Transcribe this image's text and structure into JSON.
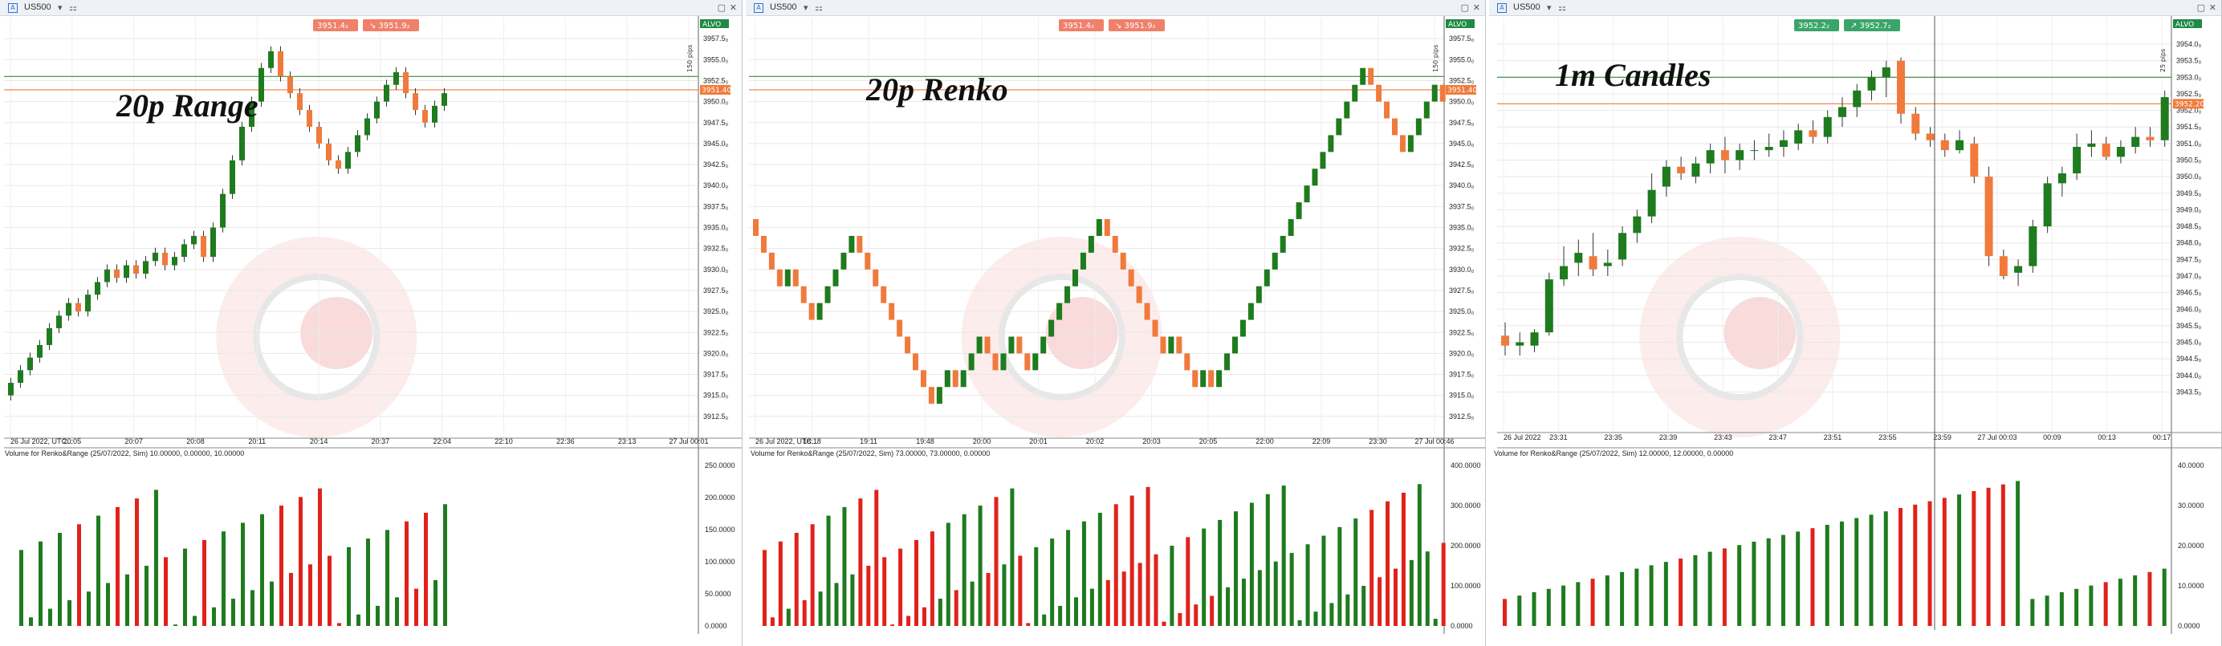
{
  "panels": [
    {
      "id": "range",
      "symbol": "US500",
      "watermark": "20p Range",
      "volume_title": "Volume for Renko&Range (25/07/2022, Sim) 10.00000, 0.00000, 10.00000",
      "bid_tag": "3951.4₂",
      "ask_tag": "3951.9₂",
      "alvo_label": "ALVO",
      "range_label": "150 pips",
      "price_tag": "3951.40",
      "target_tag": "3953.0",
      "chart_data": {
        "type": "candlestick",
        "ylim": [
          3910,
          3960
        ],
        "yticks": [
          3912.5,
          3915,
          3917.5,
          3920,
          3922.5,
          3925,
          3927.5,
          3930,
          3932.5,
          3935,
          3937.5,
          3940,
          3942.5,
          3945,
          3947.5,
          3950,
          3952.5,
          3955,
          3957.5
        ],
        "ytick_labels": [
          "3912.5₀",
          "3915.0₀",
          "3917.5₀",
          "3920.0₀",
          "3922.5₀",
          "3925.0₀",
          "3927.5₀",
          "3930.0₀",
          "3932.5₀",
          "3935.0₀",
          "3937.5₀",
          "3940.0₀",
          "3942.5₀",
          "3945.0₀",
          "3947.5₀",
          "3950.0₀",
          "3952.5₀",
          "3955.0₀",
          "3957.5₀"
        ],
        "x_labels": [
          "26 Jul 2022, UTC...",
          "20:05",
          "20:07",
          "20:08",
          "20:11",
          "20:14",
          "20:37",
          "22:04",
          "22:10",
          "22:36",
          "23:13",
          "27 Jul 00:01"
        ],
        "closes": [
          3916.5,
          3918,
          3919.5,
          3921,
          3923,
          3924.5,
          3926,
          3925,
          3927,
          3928.5,
          3930,
          3929,
          3930.5,
          3929.5,
          3931,
          3932,
          3930.5,
          3931.5,
          3933,
          3934,
          3931.5,
          3935,
          3939,
          3943,
          3947,
          3950,
          3954,
          3956,
          3953,
          3951,
          3949,
          3947,
          3945,
          3943,
          3942,
          3944,
          3946,
          3948,
          3950,
          3952,
          3953.5,
          3951,
          3949,
          3947.5,
          3949.5,
          3951
        ],
        "line_green": 3953.0,
        "line_orange": 3951.4,
        "volume_ylim": [
          0,
          260000
        ],
        "volume_ticks": [
          "250.0000",
          "200.0000",
          "150.0000",
          "100.0000",
          "50.0000",
          "0.0000"
        ]
      }
    },
    {
      "id": "renko",
      "symbol": "US500",
      "watermark": "20p Renko",
      "volume_title": "Volume for Renko&Range (25/07/2022, Sim) 73.00000, 73.00000, 0.00000",
      "bid_tag": "3951.4₂",
      "ask_tag": "3951.9₂",
      "alvo_label": "ALVO",
      "range_label": "150 pips",
      "price_tag": "3951.40",
      "target_tag": "3953.0",
      "chart_data": {
        "type": "renko",
        "ylim": [
          3910,
          3960
        ],
        "yticks": [
          3912.5,
          3915,
          3917.5,
          3920,
          3922.5,
          3925,
          3927.5,
          3930,
          3932.5,
          3935,
          3937.5,
          3940,
          3942.5,
          3945,
          3947.5,
          3950,
          3952.5,
          3955,
          3957.5
        ],
        "ytick_labels": [
          "3912.5₀",
          "3915.0₀",
          "3917.5₀",
          "3920.0₀",
          "3922.5₀",
          "3925.0₀",
          "3927.5₀",
          "3930.0₀",
          "3932.5₀",
          "3935.0₀",
          "3937.5₀",
          "3940.0₀",
          "3942.5₀",
          "3945.0₀",
          "3947.5₀",
          "3950.0₀",
          "3952.5₀",
          "3955.0₀",
          "3957.5₀"
        ],
        "x_labels": [
          "26 Jul 2022, UTC...",
          "18:18",
          "19:11",
          "19:48",
          "20:00",
          "20:01",
          "20:02",
          "20:03",
          "20:05",
          "22:00",
          "22:09",
          "23:30",
          "27 Jul 00:46"
        ],
        "closes": [
          3934,
          3932,
          3930,
          3928,
          3930,
          3928,
          3926,
          3924,
          3926,
          3928,
          3930,
          3932,
          3934,
          3932,
          3930,
          3928,
          3926,
          3924,
          3922,
          3920,
          3918,
          3916,
          3914,
          3916,
          3918,
          3916,
          3918,
          3920,
          3922,
          3920,
          3918,
          3920,
          3922,
          3920,
          3918,
          3920,
          3922,
          3924,
          3926,
          3928,
          3930,
          3932,
          3934,
          3936,
          3934,
          3932,
          3930,
          3928,
          3926,
          3924,
          3922,
          3920,
          3922,
          3920,
          3918,
          3916,
          3918,
          3916,
          3918,
          3920,
          3922,
          3924,
          3926,
          3928,
          3930,
          3932,
          3934,
          3936,
          3938,
          3940,
          3942,
          3944,
          3946,
          3948,
          3950,
          3952,
          3954,
          3952,
          3950,
          3948,
          3946,
          3944,
          3946,
          3948,
          3950,
          3952,
          3950
        ],
        "line_green": 3953.0,
        "line_orange": 3951.4,
        "volume_ylim": [
          0,
          480000
        ],
        "volume_ticks": [
          "400.0000",
          "300.0000",
          "200.0000",
          "100.0000",
          "0.0000"
        ]
      }
    },
    {
      "id": "candles",
      "symbol": "US500",
      "watermark": "1m Candles",
      "volume_title": "Volume for Renko&Range (25/07/2022, Sim) 12.00000, 12.00000, 0.00000",
      "bid_tag": "3952.2₂",
      "ask_tag": "3952.7₂",
      "alvo_label": "ALVO",
      "range_label": "25 pips",
      "price_tag": "3952.20",
      "target_tag": "3953.0",
      "chart_data": {
        "type": "candlestick",
        "ylim": [
          3942.3,
          3954.8
        ],
        "yticks": [
          3943.5,
          3944,
          3944.5,
          3945,
          3945.5,
          3946,
          3946.5,
          3947,
          3947.5,
          3948,
          3948.5,
          3949,
          3949.5,
          3950,
          3950.5,
          3951,
          3951.5,
          3952,
          3952.5,
          3953,
          3953.5,
          3954
        ],
        "ytick_labels": [
          "3943.5₀",
          "3944.0₀",
          "3944.5₀",
          "3945.0₀",
          "3945.5₀",
          "3946.0₀",
          "3946.5₀",
          "3947.0₀",
          "3947.5₀",
          "3948.0₀",
          "3948.5₀",
          "3949.0₀",
          "3949.5₀",
          "3950.0₀",
          "3950.5₀",
          "3951.0₀",
          "3951.5₀",
          "3952.0₀",
          "3952.5₀",
          "3953.0₀",
          "3953.5₀",
          "3954.0₀"
        ],
        "x_labels": [
          "26 Jul 2022",
          "23:31",
          "23:35",
          "23:39",
          "23:43",
          "23:47",
          "23:51",
          "23:55",
          "23:59",
          "27 Jul 00:03",
          "00:09",
          "00:13",
          "00:17"
        ],
        "ohlc": [
          [
            3945.2,
            3945.6,
            3944.6,
            3944.9
          ],
          [
            3944.9,
            3945.3,
            3944.6,
            3945.0
          ],
          [
            3944.9,
            3945.4,
            3944.7,
            3945.3
          ],
          [
            3945.3,
            3947.1,
            3945.2,
            3946.9
          ],
          [
            3946.9,
            3947.9,
            3946.7,
            3947.3
          ],
          [
            3947.4,
            3948.1,
            3947.0,
            3947.7
          ],
          [
            3947.6,
            3948.3,
            3947.0,
            3947.2
          ],
          [
            3947.3,
            3947.8,
            3947.0,
            3947.4
          ],
          [
            3947.5,
            3948.5,
            3947.3,
            3948.3
          ],
          [
            3948.3,
            3949.0,
            3948.0,
            3948.8
          ],
          [
            3948.8,
            3950.1,
            3948.6,
            3949.6
          ],
          [
            3949.7,
            3950.5,
            3949.4,
            3950.3
          ],
          [
            3950.3,
            3950.6,
            3949.9,
            3950.1
          ],
          [
            3950.0,
            3950.6,
            3949.8,
            3950.4
          ],
          [
            3950.4,
            3951.0,
            3950.1,
            3950.8
          ],
          [
            3950.8,
            3951.2,
            3950.1,
            3950.5
          ],
          [
            3950.5,
            3951.0,
            3950.2,
            3950.8
          ],
          [
            3950.8,
            3951.1,
            3950.5,
            3950.8
          ],
          [
            3950.8,
            3951.3,
            3950.6,
            3950.9
          ],
          [
            3950.9,
            3951.4,
            3950.6,
            3951.1
          ],
          [
            3951.0,
            3951.6,
            3950.8,
            3951.4
          ],
          [
            3951.4,
            3951.7,
            3951.0,
            3951.2
          ],
          [
            3951.2,
            3952.0,
            3951.0,
            3951.8
          ],
          [
            3951.8,
            3952.4,
            3951.5,
            3952.1
          ],
          [
            3952.1,
            3952.8,
            3951.8,
            3952.6
          ],
          [
            3952.6,
            3953.2,
            3952.3,
            3953.0
          ],
          [
            3953.0,
            3953.5,
            3952.4,
            3953.3
          ],
          [
            3953.5,
            3953.6,
            3951.6,
            3951.9
          ],
          [
            3951.9,
            3952.1,
            3951.1,
            3951.3
          ],
          [
            3951.3,
            3951.5,
            3950.9,
            3951.1
          ],
          [
            3951.1,
            3951.3,
            3950.6,
            3950.8
          ],
          [
            3950.8,
            3951.4,
            3950.7,
            3951.1
          ],
          [
            3951.0,
            3951.2,
            3949.8,
            3950.0
          ],
          [
            3950.0,
            3950.3,
            3947.3,
            3947.6
          ],
          [
            3947.6,
            3947.8,
            3946.9,
            3947.0
          ],
          [
            3947.1,
            3947.5,
            3946.7,
            3947.3
          ],
          [
            3947.3,
            3948.7,
            3947.1,
            3948.5
          ],
          [
            3948.5,
            3950.0,
            3948.3,
            3949.8
          ],
          [
            3949.8,
            3950.3,
            3949.4,
            3950.1
          ],
          [
            3950.1,
            3951.3,
            3949.9,
            3950.9
          ],
          [
            3950.9,
            3951.4,
            3950.6,
            3951.0
          ],
          [
            3951.0,
            3951.2,
            3950.5,
            3950.6
          ],
          [
            3950.6,
            3951.1,
            3950.4,
            3950.9
          ],
          [
            3950.9,
            3951.5,
            3950.7,
            3951.2
          ],
          [
            3951.2,
            3951.5,
            3950.9,
            3951.1
          ],
          [
            3951.1,
            3952.6,
            3950.9,
            3952.4
          ]
        ],
        "line_green": 3953.0,
        "line_orange": 3952.2,
        "volume_ylim": [
          0,
          50
        ],
        "volume_ticks": [
          "40.0000",
          "30.0000",
          "20.0000",
          "10.0000",
          "0.0000"
        ]
      }
    }
  ]
}
